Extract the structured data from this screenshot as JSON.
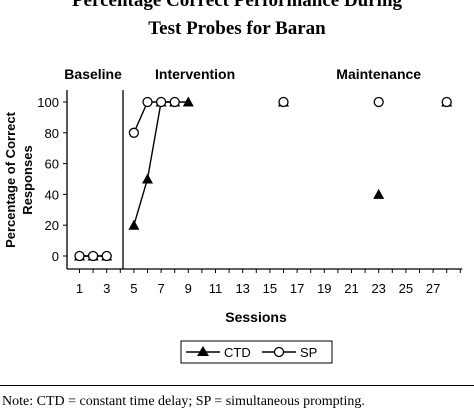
{
  "chart_data": {
    "type": "line",
    "title_line1": "Percentage Correct Performance During",
    "title_line2": "Test Probes for Baran",
    "xlabel": "Sessions",
    "ylabel_line1": "Percentage of Correct",
    "ylabel_line2": "Responses",
    "xlim": [
      0,
      29
    ],
    "ylim": [
      0,
      100
    ],
    "x_ticks": [
      1,
      3,
      5,
      7,
      9,
      11,
      13,
      15,
      17,
      19,
      21,
      23,
      25,
      27
    ],
    "y_ticks": [
      0,
      20,
      40,
      60,
      80,
      100
    ],
    "phases": [
      {
        "label": "Baseline",
        "x": 2
      },
      {
        "label": "Intervention",
        "x": 9.5
      },
      {
        "label": "Maintenance",
        "x": 23
      }
    ],
    "phase_line_x": 4.2,
    "legend_position": "bottom-center",
    "grid": false,
    "series": [
      {
        "name": "CTD",
        "marker": "triangle",
        "segments": [
          [
            [
              1,
              0
            ],
            [
              2,
              0
            ],
            [
              3,
              0
            ]
          ],
          [
            [
              5,
              20
            ],
            [
              6,
              50
            ],
            [
              7,
              100
            ],
            [
              8,
              100
            ],
            [
              9,
              100
            ]
          ],
          [
            [
              16,
              100
            ]
          ],
          [
            [
              23,
              40
            ]
          ],
          [
            [
              28,
              100
            ]
          ]
        ]
      },
      {
        "name": "SP",
        "marker": "circle",
        "segments": [
          [
            [
              1,
              0
            ],
            [
              2,
              0
            ],
            [
              3,
              0
            ]
          ],
          [
            [
              5,
              80
            ],
            [
              6,
              100
            ],
            [
              7,
              100
            ],
            [
              8,
              100
            ]
          ],
          [
            [
              16,
              100
            ]
          ],
          [
            [
              23,
              100
            ]
          ],
          [
            [
              28,
              100
            ]
          ]
        ]
      }
    ]
  },
  "note": "Note: CTD = constant time delay; SP = simultaneous prompting."
}
